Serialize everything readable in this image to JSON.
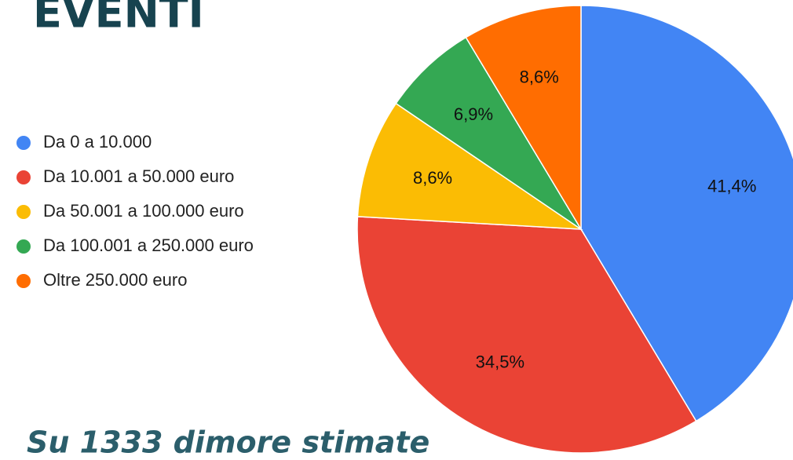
{
  "chart_data": {
    "type": "pie",
    "title": "EVENTI",
    "subtitle": "Su 1333 dimore stimate",
    "categories": [
      "Da 0 a 10.000",
      "Da 10.001 a 50.000 euro",
      "Da 50.001 a 100.000 euro",
      "Da 100.001 a 250.000 euro",
      "Oltre 250.000 euro"
    ],
    "values": [
      41.4,
      34.5,
      8.6,
      6.9,
      8.6
    ],
    "value_labels": [
      "41,4%",
      "34,5%",
      "8,6%",
      "6,9%",
      "8,6%"
    ],
    "colors": [
      "#4285f4",
      "#ea4335",
      "#fbbc04",
      "#34a853",
      "#ff6d01"
    ]
  }
}
